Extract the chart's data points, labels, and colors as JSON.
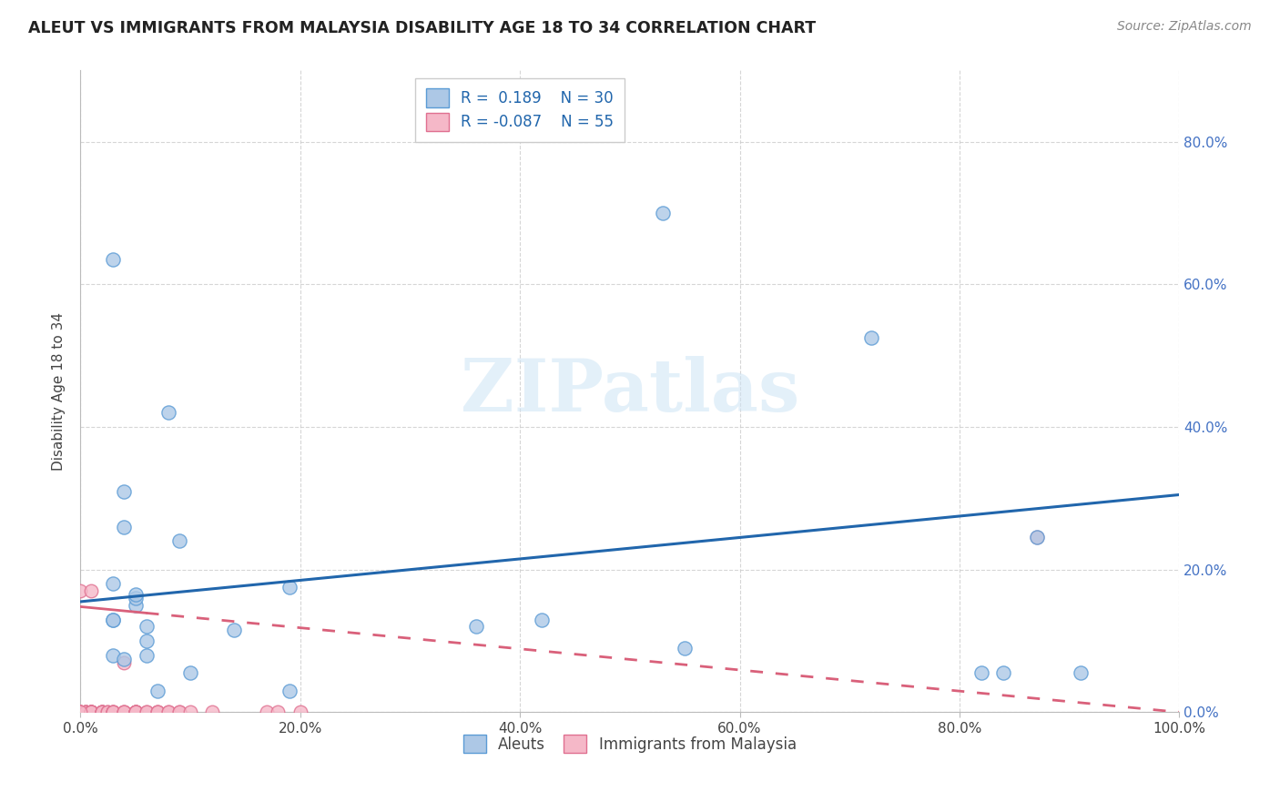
{
  "title": "ALEUT VS IMMIGRANTS FROM MALAYSIA DISABILITY AGE 18 TO 34 CORRELATION CHART",
  "source": "Source: ZipAtlas.com",
  "ylabel": "Disability Age 18 to 34",
  "xlim": [
    0,
    1.0
  ],
  "ylim": [
    0,
    0.9
  ],
  "xticks": [
    0.0,
    0.2,
    0.4,
    0.6,
    0.8,
    1.0
  ],
  "xtick_labels": [
    "0.0%",
    "20.0%",
    "40.0%",
    "60.0%",
    "80.0%",
    "100.0%"
  ],
  "ytick_labels": [
    "0.0%",
    "20.0%",
    "40.0%",
    "60.0%",
    "80.0%"
  ],
  "yticks": [
    0.0,
    0.2,
    0.4,
    0.6,
    0.8
  ],
  "aleuts_R": 0.189,
  "aleuts_N": 30,
  "malaysia_R": -0.087,
  "malaysia_N": 55,
  "aleuts_color": "#adc8e6",
  "malaysia_color": "#f5b8c8",
  "aleuts_edge_color": "#5b9bd5",
  "malaysia_edge_color": "#e07090",
  "trend_blue": "#2166ac",
  "trend_pink": "#d9607a",
  "watermark_text": "ZIPatlas",
  "blue_line_x0": 0.0,
  "blue_line_y0": 0.155,
  "blue_line_x1": 1.0,
  "blue_line_y1": 0.305,
  "pink_line_x0": 0.0,
  "pink_line_y0": 0.148,
  "pink_line_x1": 1.0,
  "pink_line_y1": 0.0,
  "aleuts_x": [
    0.03,
    0.08,
    0.04,
    0.19,
    0.36,
    0.04,
    0.05,
    0.06,
    0.09,
    0.03,
    0.05,
    0.07,
    0.19,
    0.42,
    0.55,
    0.72,
    0.87,
    0.91,
    0.05,
    0.14,
    0.1,
    0.06,
    0.04,
    0.03,
    0.03,
    0.03,
    0.06,
    0.53,
    0.82,
    0.84
  ],
  "aleuts_y": [
    0.635,
    0.42,
    0.31,
    0.175,
    0.12,
    0.26,
    0.15,
    0.08,
    0.24,
    0.08,
    0.16,
    0.03,
    0.03,
    0.13,
    0.09,
    0.525,
    0.245,
    0.055,
    0.165,
    0.115,
    0.055,
    0.1,
    0.075,
    0.13,
    0.18,
    0.13,
    0.12,
    0.7,
    0.055,
    0.055
  ],
  "malaysia_x": [
    0.0,
    0.0,
    0.0,
    0.0,
    0.0,
    0.005,
    0.005,
    0.005,
    0.005,
    0.01,
    0.01,
    0.01,
    0.01,
    0.01,
    0.01,
    0.01,
    0.01,
    0.01,
    0.02,
    0.02,
    0.02,
    0.02,
    0.02,
    0.025,
    0.025,
    0.03,
    0.03,
    0.03,
    0.03,
    0.04,
    0.04,
    0.04,
    0.04,
    0.05,
    0.05,
    0.05,
    0.05,
    0.05,
    0.05,
    0.06,
    0.06,
    0.07,
    0.07,
    0.07,
    0.08,
    0.08,
    0.09,
    0.09,
    0.1,
    0.12,
    0.17,
    0.18,
    0.2,
    0.87,
    0.0
  ],
  "malaysia_y": [
    0.0,
    0.0,
    0.0,
    0.0,
    0.17,
    0.0,
    0.0,
    0.0,
    0.0,
    0.0,
    0.0,
    0.0,
    0.0,
    0.0,
    0.0,
    0.0,
    0.0,
    0.17,
    0.0,
    0.0,
    0.0,
    0.0,
    0.0,
    0.0,
    0.0,
    0.0,
    0.0,
    0.0,
    0.0,
    0.0,
    0.0,
    0.0,
    0.07,
    0.0,
    0.0,
    0.0,
    0.0,
    0.0,
    0.0,
    0.0,
    0.0,
    0.0,
    0.0,
    0.0,
    0.0,
    0.0,
    0.0,
    0.0,
    0.0,
    0.0,
    0.0,
    0.0,
    0.0,
    0.245,
    0.0
  ]
}
